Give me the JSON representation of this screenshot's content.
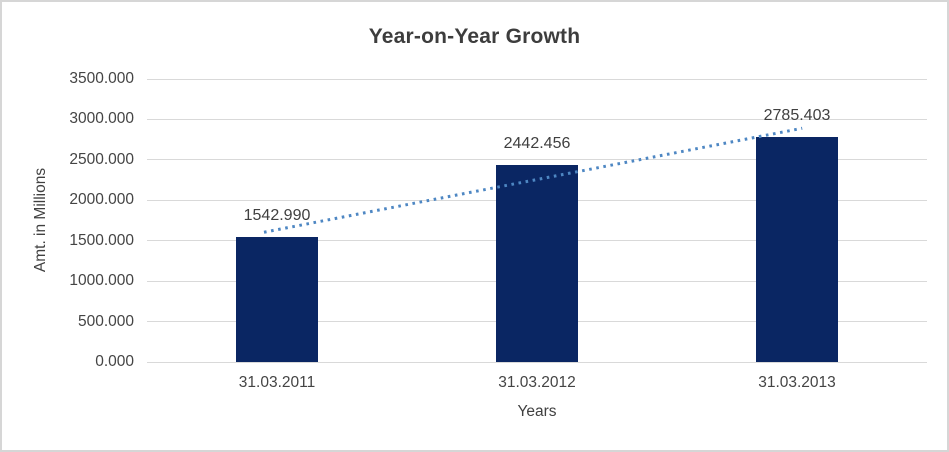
{
  "window": {
    "background": "#ffffff",
    "border_color": "#d6d6d6"
  },
  "chart_data": {
    "type": "bar",
    "title": "Year-on-Year Growth",
    "xlabel": "Years",
    "ylabel": "Amt. in Millions",
    "categories": [
      "31.03.2011",
      "31.03.2012",
      "31.03.2013"
    ],
    "series": [
      {
        "name": "Amt. in Millions",
        "values": [
          1542.99,
          2442.456,
          2785.403
        ]
      }
    ],
    "data_labels": [
      "1542.990",
      "2442.456",
      "2785.403"
    ],
    "ylim": [
      0,
      3500
    ],
    "ytick_values": [
      0,
      500,
      1000,
      1500,
      2000,
      2500,
      3000,
      3500
    ],
    "ytick_labels": [
      "0.000",
      "500.000",
      "1000.000",
      "1500.000",
      "2000.000",
      "2500.000",
      "3000.000",
      "3500.000"
    ],
    "grid": true,
    "legend": "none",
    "trendline": {
      "type": "linear",
      "style": "dotted"
    },
    "colors": {
      "bar": "#0a2663",
      "trendline": "#4e87c3",
      "gridline": "#d9d9d9",
      "axis_text": "#444444",
      "title_text": "#3d3d3d"
    }
  }
}
